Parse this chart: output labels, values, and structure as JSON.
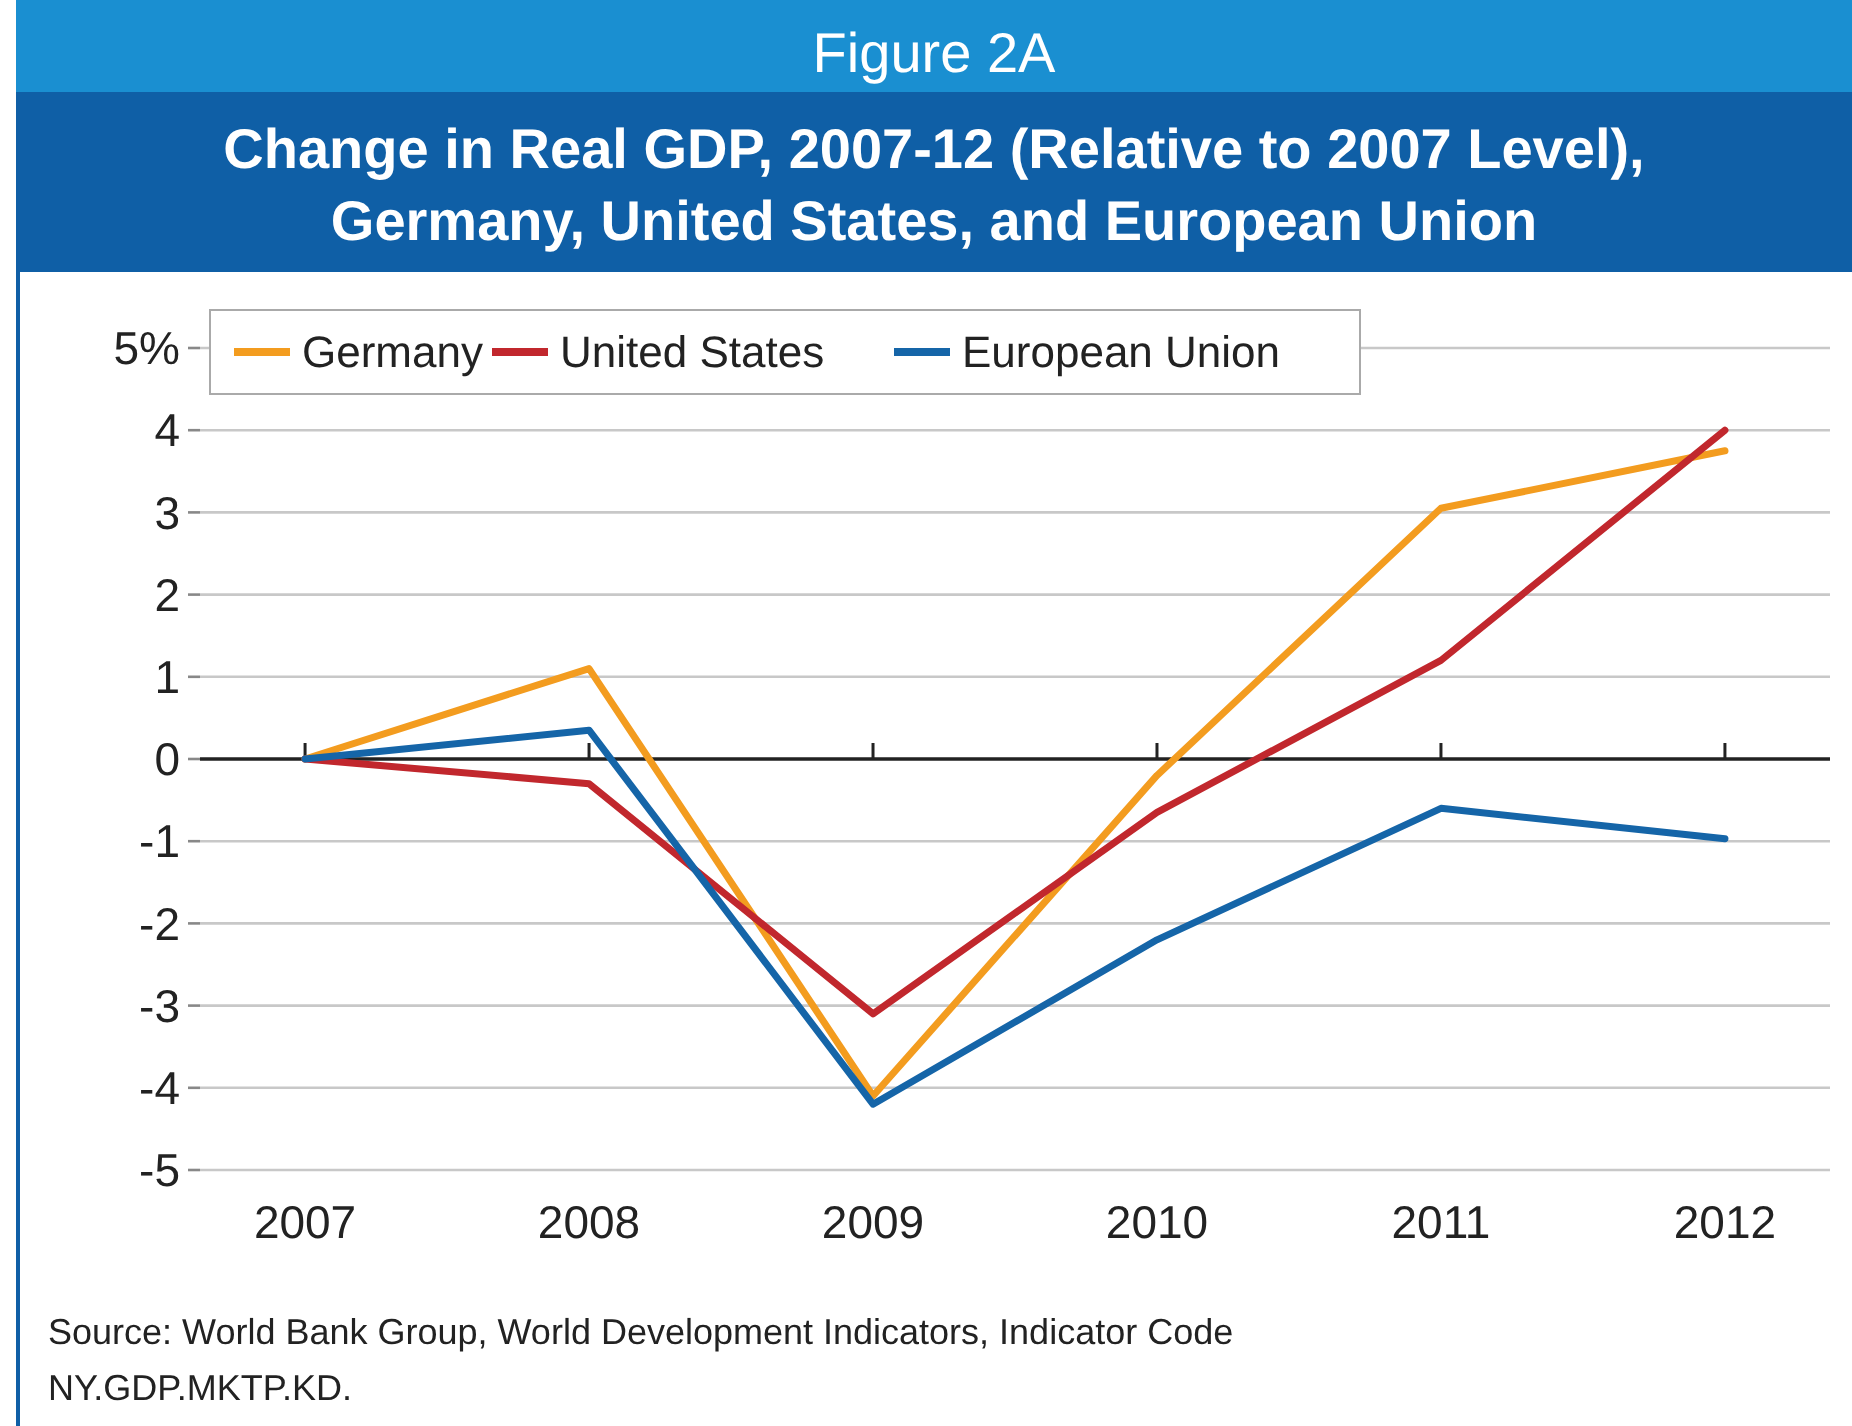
{
  "chart_data": {
    "type": "line",
    "subtitle": "Figure 2A",
    "title": "Change in Real GDP, 2007-12 (Relative to 2007 Level), Germany, United States, and European Union",
    "categories": [
      "2007",
      "2008",
      "2009",
      "2010",
      "2011",
      "2012"
    ],
    "series": [
      {
        "name": "Germany",
        "color": "#f39c1f",
        "values": [
          0,
          1.1,
          -4.1,
          -0.2,
          3.05,
          3.75
        ]
      },
      {
        "name": "United States",
        "color": "#c1272d",
        "values": [
          0,
          -0.3,
          -3.1,
          -0.65,
          1.2,
          4.0
        ]
      },
      {
        "name": "European Union",
        "color": "#1565a8",
        "values": [
          0,
          0.35,
          -4.2,
          -2.2,
          -0.6,
          -0.97
        ]
      }
    ],
    "ylim": [
      -5,
      5
    ],
    "yticks": [
      -5,
      -4,
      -3,
      -2,
      -1,
      0,
      1,
      2,
      3,
      4,
      {
        "value": 5,
        "label": "5%"
      }
    ],
    "grid": "y",
    "legend": "top left",
    "line_style": "solid",
    "marker": "none",
    "annotations": [
      "Source: World Bank Group, World Development Indicators, Indicator Code NY.GDP.MKTP.KD."
    ]
  }
}
